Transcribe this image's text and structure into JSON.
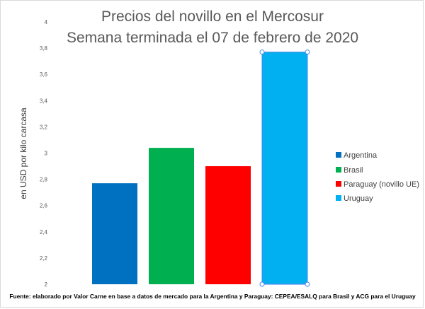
{
  "chart_data": {
    "type": "bar",
    "title": [
      "Precios del novillo en el Mercosur",
      "Semana terminada el 07 de febrero de 2020"
    ],
    "ylabel": "en USD por kilo carcasa",
    "xlabel": "",
    "ylim": [
      2,
      4
    ],
    "yticks": [
      "2",
      "2,2",
      "2,4",
      "2,6",
      "2,8",
      "3",
      "3,2",
      "3,4",
      "3,6",
      "3,8",
      "4"
    ],
    "ytick_values": [
      2,
      2.2,
      2.4,
      2.6,
      2.8,
      3.0,
      3.2,
      3.4,
      3.6,
      3.8,
      4.0
    ],
    "grid": false,
    "legend_position": "right",
    "series": [
      {
        "name": "Argentina",
        "value": 2.77,
        "color": "#0070C0"
      },
      {
        "name": "Brasil",
        "value": 3.04,
        "color": "#00B050"
      },
      {
        "name": "Paraguay (novillo UE)",
        "value": 2.9,
        "color": "#FF0000"
      },
      {
        "name": "Uruguay",
        "value": 3.77,
        "color": "#00B0F0",
        "selected": true
      }
    ],
    "footnote": "Fuente: elaborado por Valor Carne en base a datos de mercado para la Argentina y Paraguay: CEPEA/ESALQ para Brasil y ACG para el Uruguay"
  }
}
